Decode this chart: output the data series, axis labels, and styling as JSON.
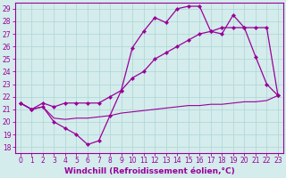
{
  "x": [
    0,
    1,
    2,
    3,
    4,
    5,
    6,
    7,
    8,
    9,
    10,
    11,
    12,
    13,
    14,
    15,
    16,
    17,
    18,
    19,
    20,
    21,
    22,
    23
  ],
  "line1": [
    21.5,
    21.0,
    21.2,
    20.0,
    19.5,
    19.0,
    18.2,
    18.5,
    20.5,
    22.5,
    25.9,
    27.2,
    28.3,
    27.9,
    29.0,
    29.2,
    29.2,
    27.2,
    27.0,
    28.5,
    27.5,
    25.2,
    23.0,
    22.1
  ],
  "line2": [
    21.5,
    21.0,
    21.5,
    21.2,
    21.5,
    21.5,
    21.5,
    21.5,
    22.0,
    22.5,
    23.5,
    24.0,
    25.0,
    25.5,
    26.0,
    26.5,
    27.0,
    27.2,
    27.5,
    27.5,
    27.5,
    27.5,
    27.5,
    22.1
  ],
  "line3": [
    21.5,
    21.0,
    21.2,
    20.3,
    20.2,
    20.3,
    20.3,
    20.4,
    20.5,
    20.7,
    20.8,
    20.9,
    21.0,
    21.1,
    21.2,
    21.3,
    21.3,
    21.4,
    21.4,
    21.5,
    21.6,
    21.6,
    21.7,
    22.1
  ],
  "line_color": "#990099",
  "bg_color": "#d4ecec",
  "grid_color": "#aed4d4",
  "xlabel": "Windchill (Refroidissement éolien,°C)",
  "xlim": [
    -0.5,
    23.5
  ],
  "ylim": [
    17.5,
    29.5
  ],
  "yticks": [
    18,
    19,
    20,
    21,
    22,
    23,
    24,
    25,
    26,
    27,
    28,
    29
  ],
  "xticks": [
    0,
    1,
    2,
    3,
    4,
    5,
    6,
    7,
    8,
    9,
    10,
    11,
    12,
    13,
    14,
    15,
    16,
    17,
    18,
    19,
    20,
    21,
    22,
    23
  ],
  "label_fontsize": 6.5,
  "tick_fontsize": 5.5
}
